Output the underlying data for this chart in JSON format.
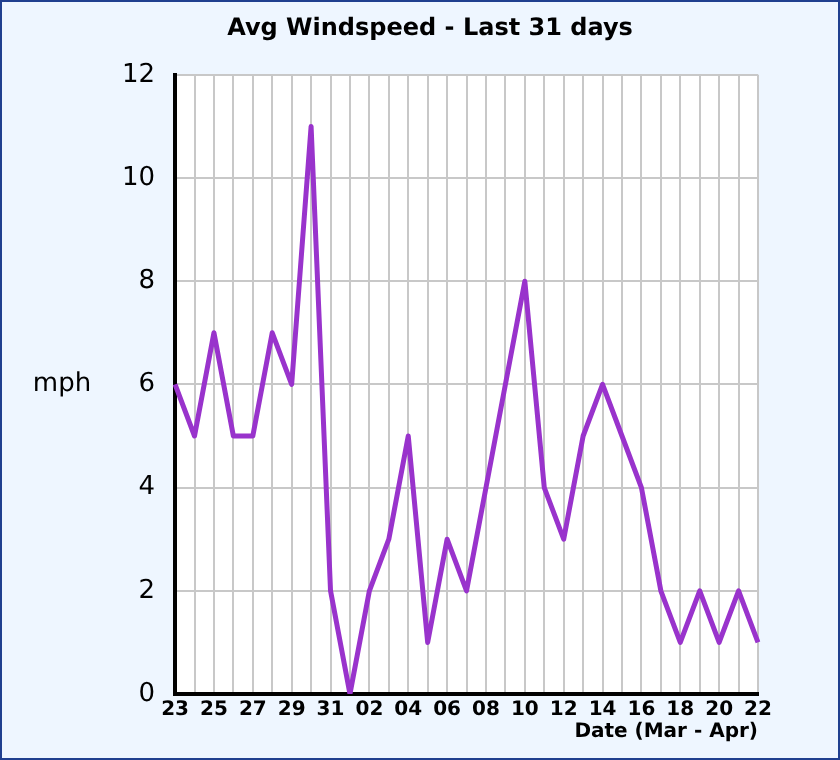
{
  "chart_data": {
    "type": "line",
    "title": "Avg Windspeed - Last 31 days",
    "xlabel": "Date (Mar - Apr)",
    "ylabel": "mph",
    "categories": [
      "23",
      null,
      "25",
      null,
      "27",
      null,
      "29",
      null,
      "31",
      null,
      "02",
      null,
      "04",
      null,
      "06",
      null,
      "08",
      null,
      "10",
      null,
      "12",
      null,
      "14",
      null,
      "16",
      null,
      "18",
      null,
      "20",
      null,
      "22"
    ],
    "series": [
      {
        "color": "#9933cc",
        "values": [
          6,
          5,
          7,
          5,
          5,
          7,
          6,
          11,
          2,
          0,
          2,
          3,
          5,
          1,
          3,
          2,
          4,
          6,
          8,
          4,
          3,
          5,
          6,
          5,
          4,
          2,
          1,
          2,
          1,
          2,
          1
        ]
      }
    ],
    "ylim": [
      0,
      12
    ],
    "yticks": [
      0,
      2,
      4,
      6,
      8,
      10,
      12
    ],
    "grid": true,
    "marker": "none",
    "line_style": "solid"
  }
}
